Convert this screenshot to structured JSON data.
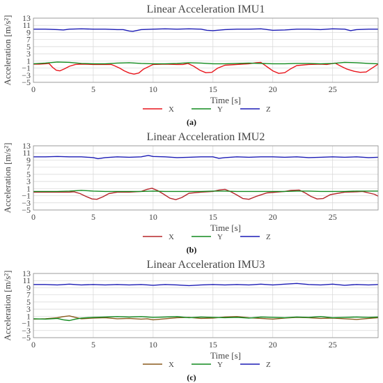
{
  "chart_data": [
    {
      "type": "line",
      "title": "Linear Acceleration IMU1",
      "xlabel": "Time [s]",
      "ylabel": "Acceleration [m/s²]",
      "xlim": [
        0,
        28.8
      ],
      "ylim": [
        -5,
        13
      ],
      "xticks": [
        "0",
        "5",
        "10",
        "15",
        "20",
        "25"
      ],
      "yticks": [
        "−5",
        "−3",
        "−1",
        "1",
        "3",
        "5",
        "7",
        "9",
        "11",
        "13"
      ],
      "caption": "(a)",
      "grid": true,
      "legend_position": "bottom-center",
      "series": [
        {
          "name": "X",
          "color": "#e8141b",
          "x": [
            0,
            0.5,
            1,
            1.3,
            1.6,
            1.9,
            2.2,
            2.6,
            3.0,
            3.5,
            4.0,
            5,
            6,
            6.5,
            6.8,
            7.2,
            7.6,
            8.0,
            8.4,
            8.8,
            9.2,
            10,
            11,
            12,
            12.5,
            12.9,
            13.4,
            13.9,
            14.4,
            14.9,
            15.4,
            16,
            17,
            18,
            18.6,
            19,
            19.5,
            20,
            20.5,
            21,
            21.5,
            22,
            23,
            24,
            24.5,
            25.2,
            25.7,
            26.2,
            26.8,
            27.3,
            27.8,
            28.3,
            28.8
          ],
          "values": [
            0.1,
            0.1,
            0.2,
            0.3,
            -0.8,
            -1.6,
            -1.8,
            -1.2,
            -0.5,
            0,
            0.1,
            0,
            0,
            0,
            -0.4,
            -1.0,
            -1.8,
            -2.4,
            -2.7,
            -2.4,
            -1.3,
            0,
            0.1,
            0,
            0,
            0.3,
            -0.5,
            -1.6,
            -2.3,
            -2.2,
            -1.0,
            -0.2,
            0,
            0.2,
            0.5,
            0.6,
            -0.6,
            -1.8,
            -2.5,
            -2.3,
            -1.2,
            -0.3,
            0,
            0.1,
            0,
            0.4,
            -0.5,
            -1.3,
            -1.9,
            -2.2,
            -2.1,
            -1.0,
            0.1
          ]
        },
        {
          "name": "Y",
          "color": "#118a1e",
          "x": [
            0,
            1,
            2,
            3,
            4,
            5,
            6,
            7,
            8,
            9,
            10,
            11,
            12,
            13,
            14,
            15,
            16,
            17,
            18,
            19,
            20,
            21,
            22,
            23,
            24,
            25,
            26,
            27,
            28,
            28.8
          ],
          "values": [
            0.2,
            0.4,
            0.7,
            0.6,
            0.3,
            0.2,
            0.2,
            0.4,
            0.5,
            0.3,
            0.2,
            0.2,
            0.3,
            0.5,
            0.4,
            0.2,
            0.2,
            0.3,
            0.4,
            0.3,
            0.2,
            0.2,
            0.3,
            0.3,
            0.2,
            0.3,
            0.6,
            0.5,
            0.3,
            0.2
          ]
        },
        {
          "name": "Z",
          "color": "#1b1bb5",
          "x": [
            0,
            1,
            2,
            2.5,
            3,
            4,
            5,
            6,
            7,
            7.5,
            8,
            8.3,
            9,
            10,
            11,
            12,
            13,
            14,
            14.5,
            15,
            16,
            17,
            18,
            19,
            20,
            21,
            22,
            23,
            24,
            25,
            26,
            26.5,
            27,
            28,
            28.8
          ],
          "values": [
            9.9,
            9.9,
            9.8,
            9.7,
            9.9,
            10.0,
            9.9,
            9.9,
            9.8,
            9.8,
            9.4,
            9.3,
            9.8,
            9.9,
            10.0,
            9.9,
            10.0,
            9.9,
            9.6,
            9.5,
            9.8,
            9.9,
            9.9,
            10.0,
            9.6,
            9.7,
            9.9,
            9.9,
            9.8,
            10.0,
            9.9,
            9.5,
            9.8,
            9.9,
            9.9
          ]
        }
      ]
    },
    {
      "type": "line",
      "title": "Linear Acceleration IMU2",
      "xlabel": "Time [s]",
      "ylabel": "Acceleration [m/s²]",
      "xlim": [
        0,
        28.8
      ],
      "ylim": [
        -5,
        13
      ],
      "xticks": [
        "0",
        "5",
        "10",
        "15",
        "20",
        "25"
      ],
      "yticks": [
        "−5",
        "−3",
        "−1",
        "1",
        "3",
        "5",
        "7",
        "9",
        "11",
        "13"
      ],
      "caption": "(b)",
      "grid": true,
      "legend_position": "bottom-center",
      "series": [
        {
          "name": "X",
          "color": "#b5262a",
          "x": [
            0,
            1,
            2,
            3,
            3.4,
            3.9,
            4.4,
            4.9,
            5.3,
            5.8,
            6.3,
            7,
            8,
            9,
            9.5,
            9.9,
            10.4,
            10.9,
            11.4,
            11.9,
            12.4,
            13,
            14,
            15,
            15.5,
            16.0,
            16.5,
            17.0,
            17.5,
            18.0,
            18.6,
            19.5,
            21,
            21.5,
            22.2,
            22.7,
            23.2,
            23.7,
            24.2,
            24.8,
            26,
            27,
            27.5,
            28.0,
            28.5,
            28.8
          ],
          "values": [
            0,
            0,
            0,
            0,
            0.1,
            -0.4,
            -1.2,
            -1.9,
            -2.0,
            -1.3,
            -0.4,
            0,
            0,
            0.2,
            0.8,
            1.1,
            0.4,
            -0.6,
            -1.7,
            -2.1,
            -1.5,
            -0.3,
            0,
            0.2,
            0.6,
            0.8,
            0.1,
            -0.8,
            -1.8,
            -2.0,
            -1.2,
            -0.2,
            0.2,
            0.5,
            0.6,
            -0.2,
            -1.2,
            -1.9,
            -1.8,
            -0.7,
            0,
            0.1,
            0.2,
            -0.2,
            -0.6,
            -1.1
          ]
        },
        {
          "name": "Y",
          "color": "#118a1e",
          "x": [
            0,
            1,
            2,
            3,
            4,
            5,
            6,
            7,
            8,
            9,
            10,
            11,
            12,
            13,
            14,
            15,
            16,
            17,
            18,
            19,
            20,
            21,
            22,
            23,
            24,
            25,
            26,
            27,
            28,
            28.8
          ],
          "values": [
            0.2,
            0.2,
            0.2,
            0.3,
            0.5,
            0.3,
            0.2,
            0.2,
            0.2,
            0.2,
            0.3,
            0.2,
            0.2,
            0.2,
            0.2,
            0.3,
            0.3,
            0.2,
            0.2,
            0.2,
            0.2,
            0.2,
            0.3,
            0.3,
            0.2,
            0.2,
            0.2,
            0.3,
            0.3,
            0.3
          ]
        },
        {
          "name": "Z",
          "color": "#1b1bb5",
          "x": [
            0,
            1,
            2,
            3,
            4,
            5,
            5.4,
            6,
            7,
            8,
            9,
            9.6,
            10,
            11,
            12,
            13,
            14,
            15,
            15.5,
            16,
            17,
            18,
            19,
            20,
            21,
            22,
            23,
            24,
            25,
            26,
            27,
            28,
            28.8
          ],
          "values": [
            9.9,
            9.9,
            10.0,
            9.9,
            9.9,
            9.7,
            9.4,
            9.7,
            9.9,
            9.8,
            9.9,
            10.3,
            10.0,
            9.9,
            9.7,
            9.8,
            9.9,
            9.9,
            9.5,
            9.7,
            9.9,
            9.8,
            9.9,
            9.9,
            9.8,
            9.9,
            9.7,
            9.8,
            9.9,
            9.8,
            9.9,
            9.7,
            9.8
          ]
        }
      ]
    },
    {
      "type": "line",
      "title": "Linear Acceleration IMU3",
      "xlabel": "Time [s]",
      "ylabel": "Acceleration [m/s²]",
      "xlim": [
        0,
        28.8
      ],
      "ylim": [
        -5,
        13
      ],
      "xticks": [
        "0",
        "5",
        "10",
        "15",
        "20",
        "25"
      ],
      "yticks": [
        "−5",
        "−3",
        "−1",
        "1",
        "3",
        "5",
        "7",
        "9",
        "11",
        "13"
      ],
      "caption": "(c)",
      "grid": true,
      "legend_position": "bottom-center",
      "series": [
        {
          "name": "X",
          "color": "#8a5a1c",
          "x": [
            0,
            1,
            2,
            2.5,
            3,
            3.5,
            4,
            5,
            6,
            7,
            8,
            9,
            9.5,
            10,
            11,
            12,
            13,
            14,
            15,
            16,
            17,
            18,
            19,
            20,
            21,
            22,
            23,
            24,
            25,
            26,
            27,
            28,
            28.8
          ],
          "values": [
            0.2,
            0.3,
            0.6,
            0.9,
            1.1,
            0.7,
            0.3,
            0.5,
            0.6,
            0.3,
            0.4,
            0.2,
            0.3,
            0.0,
            0.3,
            0.6,
            0.7,
            0.4,
            0.5,
            0.8,
            0.9,
            0.6,
            0.4,
            0.2,
            0.5,
            0.7,
            0.6,
            0.4,
            0.5,
            0.3,
            0.1,
            0.4,
            0.6
          ]
        },
        {
          "name": "Y",
          "color": "#118a1e",
          "x": [
            0,
            1,
            2,
            2.5,
            3,
            3.5,
            4,
            5,
            6,
            7,
            8,
            9,
            10,
            11,
            12,
            13,
            14,
            15,
            16,
            17,
            18,
            19,
            20,
            21,
            22,
            23,
            24,
            25,
            26,
            27,
            28,
            28.8
          ],
          "values": [
            0.3,
            0.2,
            0.4,
            0.0,
            -0.2,
            0.2,
            0.5,
            0.7,
            0.8,
            0.9,
            0.8,
            0.9,
            0.7,
            0.8,
            0.9,
            0.6,
            0.8,
            0.7,
            0.6,
            0.7,
            0.5,
            0.8,
            0.7,
            0.6,
            0.8,
            0.7,
            0.9,
            0.6,
            0.7,
            0.8,
            0.7,
            0.8
          ]
        },
        {
          "name": "Z",
          "color": "#1b1bb5",
          "x": [
            0,
            1,
            2,
            3,
            4,
            5,
            6,
            7,
            8,
            9,
            10,
            11,
            12,
            13,
            14,
            15,
            16,
            17,
            18,
            19,
            20,
            21,
            22,
            23,
            24,
            25,
            26,
            27,
            28,
            28.8
          ],
          "values": [
            9.9,
            9.9,
            9.8,
            10.0,
            9.8,
            9.9,
            9.8,
            9.9,
            9.8,
            9.9,
            9.7,
            9.9,
            9.8,
            9.6,
            9.8,
            9.9,
            9.8,
            9.9,
            9.8,
            10.0,
            9.8,
            10.0,
            10.2,
            9.9,
            9.8,
            10.0,
            9.7,
            9.9,
            9.8,
            9.9
          ]
        }
      ]
    }
  ]
}
